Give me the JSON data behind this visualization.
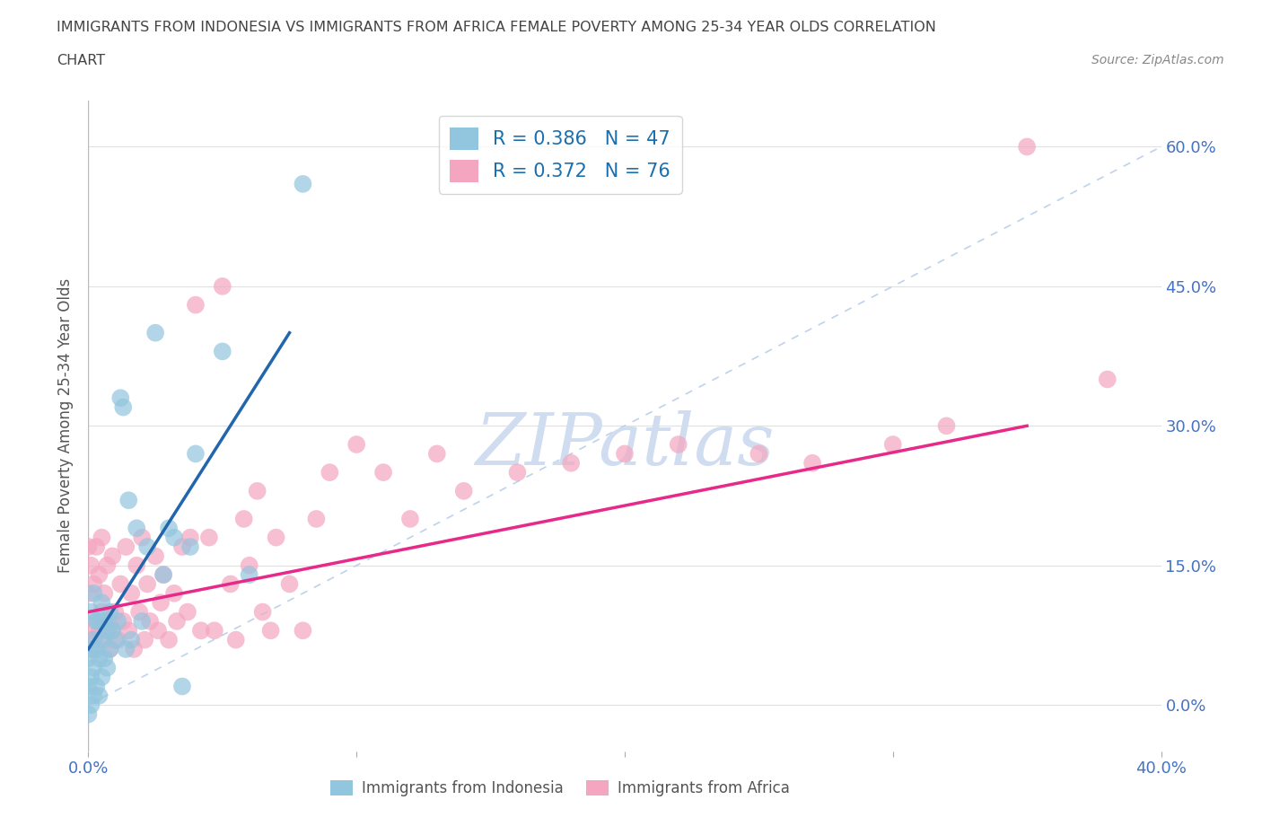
{
  "title_line1": "IMMIGRANTS FROM INDONESIA VS IMMIGRANTS FROM AFRICA FEMALE POVERTY AMONG 25-34 YEAR OLDS CORRELATION",
  "title_line2": "CHART",
  "source": "Source: ZipAtlas.com",
  "ylabel": "Female Poverty Among 25-34 Year Olds",
  "xlim": [
    0.0,
    0.4
  ],
  "ylim": [
    -0.05,
    0.65
  ],
  "yticks": [
    0.0,
    0.15,
    0.3,
    0.45,
    0.6
  ],
  "ytick_labels": [
    "0.0%",
    "15.0%",
    "30.0%",
    "45.0%",
    "60.0%"
  ],
  "xticks": [
    0.0,
    0.1,
    0.2,
    0.3,
    0.4
  ],
  "xtick_labels": [
    "0.0%",
    "",
    "",
    "",
    "40.0%"
  ],
  "R_indonesia": 0.386,
  "N_indonesia": 47,
  "R_africa": 0.372,
  "N_africa": 76,
  "color_indonesia": "#92c5de",
  "color_africa": "#f4a6c0",
  "color_indonesia_line": "#2166ac",
  "color_africa_line": "#e7298a",
  "color_diagonal": "#aec7e8",
  "watermark_text": "ZIPatlas",
  "indonesia_x": [
    0.0,
    0.0,
    0.0,
    0.001,
    0.001,
    0.001,
    0.001,
    0.002,
    0.002,
    0.002,
    0.002,
    0.003,
    0.003,
    0.003,
    0.004,
    0.004,
    0.004,
    0.005,
    0.005,
    0.005,
    0.006,
    0.006,
    0.007,
    0.007,
    0.008,
    0.008,
    0.009,
    0.01,
    0.011,
    0.012,
    0.013,
    0.014,
    0.015,
    0.016,
    0.018,
    0.02,
    0.022,
    0.025,
    0.028,
    0.03,
    0.032,
    0.035,
    0.038,
    0.04,
    0.05,
    0.06,
    0.08
  ],
  "indonesia_y": [
    -0.01,
    0.02,
    0.05,
    0.0,
    0.03,
    0.06,
    0.1,
    0.01,
    0.04,
    0.07,
    0.12,
    0.02,
    0.06,
    0.09,
    0.01,
    0.05,
    0.09,
    0.03,
    0.07,
    0.11,
    0.05,
    0.09,
    0.04,
    0.08,
    0.06,
    0.1,
    0.08,
    0.07,
    0.09,
    0.33,
    0.32,
    0.06,
    0.22,
    0.07,
    0.19,
    0.09,
    0.17,
    0.4,
    0.14,
    0.19,
    0.18,
    0.02,
    0.17,
    0.27,
    0.38,
    0.14,
    0.56
  ],
  "africa_x": [
    0.0,
    0.0,
    0.0,
    0.001,
    0.001,
    0.002,
    0.002,
    0.003,
    0.003,
    0.004,
    0.004,
    0.005,
    0.005,
    0.006,
    0.006,
    0.007,
    0.007,
    0.008,
    0.009,
    0.009,
    0.01,
    0.011,
    0.012,
    0.013,
    0.014,
    0.015,
    0.016,
    0.017,
    0.018,
    0.019,
    0.02,
    0.021,
    0.022,
    0.023,
    0.025,
    0.026,
    0.027,
    0.028,
    0.03,
    0.032,
    0.033,
    0.035,
    0.037,
    0.038,
    0.04,
    0.042,
    0.045,
    0.047,
    0.05,
    0.053,
    0.055,
    0.058,
    0.06,
    0.063,
    0.065,
    0.068,
    0.07,
    0.075,
    0.08,
    0.085,
    0.09,
    0.1,
    0.11,
    0.12,
    0.13,
    0.14,
    0.16,
    0.18,
    0.2,
    0.22,
    0.25,
    0.27,
    0.3,
    0.32,
    0.35,
    0.38
  ],
  "africa_y": [
    0.08,
    0.12,
    0.17,
    0.07,
    0.15,
    0.06,
    0.13,
    0.09,
    0.17,
    0.08,
    0.14,
    0.1,
    0.18,
    0.07,
    0.12,
    0.09,
    0.15,
    0.06,
    0.08,
    0.16,
    0.1,
    0.07,
    0.13,
    0.09,
    0.17,
    0.08,
    0.12,
    0.06,
    0.15,
    0.1,
    0.18,
    0.07,
    0.13,
    0.09,
    0.16,
    0.08,
    0.11,
    0.14,
    0.07,
    0.12,
    0.09,
    0.17,
    0.1,
    0.18,
    0.43,
    0.08,
    0.18,
    0.08,
    0.45,
    0.13,
    0.07,
    0.2,
    0.15,
    0.23,
    0.1,
    0.08,
    0.18,
    0.13,
    0.08,
    0.2,
    0.25,
    0.28,
    0.25,
    0.2,
    0.27,
    0.23,
    0.25,
    0.26,
    0.27,
    0.28,
    0.27,
    0.26,
    0.28,
    0.3,
    0.6,
    0.35
  ],
  "background_color": "#ffffff",
  "grid_color": "#e0e0e0",
  "title_color": "#444444",
  "axis_label_color": "#555555",
  "tick_label_color": "#4472c4",
  "legend_text_color": "#1a6faf",
  "watermark_color": "#d0ddf0",
  "figsize": [
    14.06,
    9.3
  ],
  "dpi": 100
}
